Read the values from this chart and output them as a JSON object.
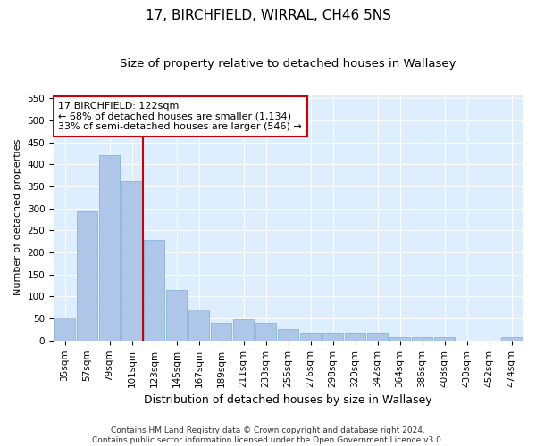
{
  "title": "17, BIRCHFIELD, WIRRAL, CH46 5NS",
  "subtitle": "Size of property relative to detached houses in Wallasey",
  "xlabel": "Distribution of detached houses by size in Wallasey",
  "ylabel": "Number of detached properties",
  "categories": [
    "35sqm",
    "57sqm",
    "79sqm",
    "101sqm",
    "123sqm",
    "145sqm",
    "167sqm",
    "189sqm",
    "211sqm",
    "233sqm",
    "255sqm",
    "276sqm",
    "298sqm",
    "320sqm",
    "342sqm",
    "364sqm",
    "386sqm",
    "408sqm",
    "430sqm",
    "452sqm",
    "474sqm"
  ],
  "values": [
    52,
    293,
    422,
    363,
    228,
    115,
    70,
    40,
    48,
    40,
    25,
    18,
    18,
    18,
    18,
    8,
    8,
    8,
    0,
    0,
    8
  ],
  "bar_color": "#aec6e8",
  "bar_edge_color": "#7bafd4",
  "vline_x_index": 4,
  "vline_color": "#cc0000",
  "annotation_text": "17 BIRCHFIELD: 122sqm\n← 68% of detached houses are smaller (1,134)\n33% of semi-detached houses are larger (546) →",
  "annotation_box_color": "#ffffff",
  "annotation_box_edge": "#cc0000",
  "ylim": [
    0,
    560
  ],
  "yticks": [
    0,
    50,
    100,
    150,
    200,
    250,
    300,
    350,
    400,
    450,
    500,
    550
  ],
  "background_color": "#ddeeff",
  "footer_text": "Contains HM Land Registry data © Crown copyright and database right 2024.\nContains public sector information licensed under the Open Government Licence v3.0.",
  "title_fontsize": 11,
  "subtitle_fontsize": 9.5,
  "xlabel_fontsize": 9,
  "ylabel_fontsize": 8,
  "tick_fontsize": 7.5,
  "annotation_fontsize": 8,
  "footer_fontsize": 6.5
}
